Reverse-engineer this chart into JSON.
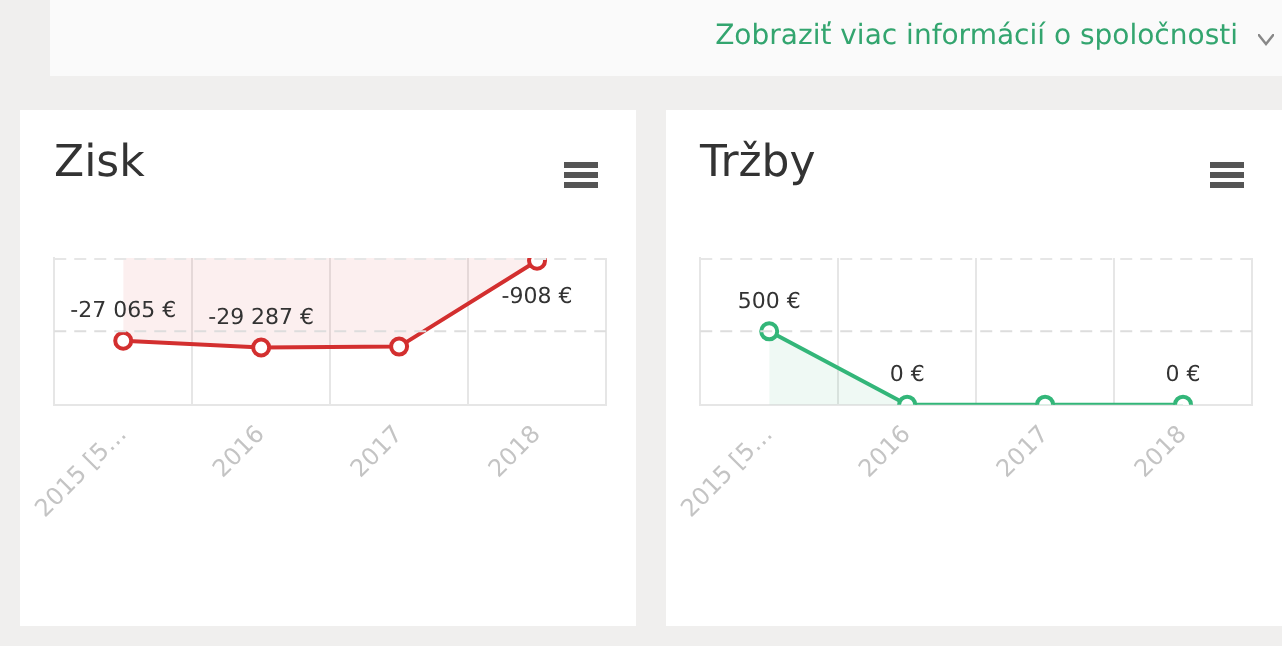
{
  "chart_data": [
    {
      "type": "area",
      "title": "Zisk",
      "categories": [
        "2015 [5…",
        "2016",
        "2017",
        "2018"
      ],
      "annotations": [
        "Zobraziť viac informácií o spoločnosti"
      ],
      "series": [
        {
          "color": "#d32f2f",
          "values": [
            -27065,
            -29287,
            -29000,
            -908
          ],
          "value_labels": [
            "-27 065 €",
            "-29 287 €",
            null,
            "-908 €"
          ]
        }
      ],
      "ylim": [
        -48000,
        0
      ],
      "ref_lines": [
        {
          "axis": "y",
          "value": -24000,
          "color": "#dddddd",
          "line_style": "dashed"
        }
      ],
      "grid": "x",
      "legend": false,
      "marker": "circle",
      "line_style": "solid",
      "tick_labels": "x"
    },
    {
      "type": "area",
      "title": "Tržby",
      "categories": [
        "2015 [5…",
        "2016",
        "2017",
        "2018"
      ],
      "series": [
        {
          "color": "#33b679",
          "values": [
            500,
            0,
            0,
            0
          ],
          "value_labels": [
            "500 €",
            "0 €",
            null,
            "0 €"
          ]
        }
      ],
      "ylim": [
        0,
        1000
      ],
      "ref_lines": [
        {
          "axis": "y",
          "value": 500,
          "color": "#dddddd",
          "line_style": "dashed"
        }
      ],
      "grid": "x",
      "legend": false,
      "marker": "circle",
      "line_style": "solid",
      "tick_labels": "x"
    }
  ]
}
